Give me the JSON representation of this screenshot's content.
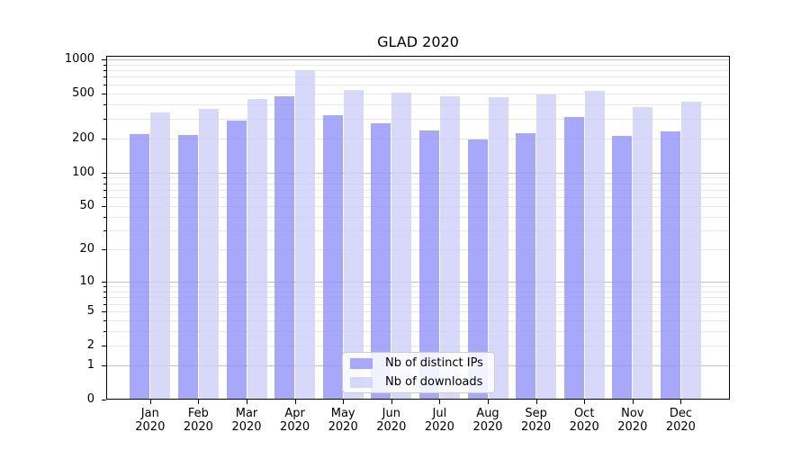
{
  "chart_data": {
    "type": "bar",
    "title": "GLAD 2020",
    "categories": [
      "Jan",
      "Feb",
      "Mar",
      "Apr",
      "May",
      "Jun",
      "Jul",
      "Aug",
      "Sep",
      "Oct",
      "Nov",
      "Dec"
    ],
    "category_year": "2020",
    "series": [
      {
        "name": "Nb of distinct IPs",
        "color": "rgba(146,146,250,0.8)",
        "values": [
          220,
          214,
          288,
          472,
          321,
          270,
          236,
          196,
          221,
          311,
          212,
          232
        ]
      },
      {
        "name": "Nb of downloads",
        "color": "rgba(206,206,249,0.8)",
        "values": [
          338,
          368,
          451,
          806,
          539,
          505,
          468,
          465,
          489,
          530,
          379,
          423
        ]
      }
    ],
    "yscale": "log1p",
    "yticks": [
      0,
      1,
      2,
      5,
      10,
      20,
      50,
      100,
      200,
      500,
      1000
    ],
    "ylim": [
      0,
      1075
    ],
    "xlabel": "",
    "ylabel": "",
    "grid": {
      "major_at": [
        1,
        10,
        100,
        1000
      ],
      "minor": "2-9 per decade",
      "major_color": "#c2c2c2",
      "minor_color": "#e8e8e8"
    },
    "legend_position": "lower center"
  }
}
